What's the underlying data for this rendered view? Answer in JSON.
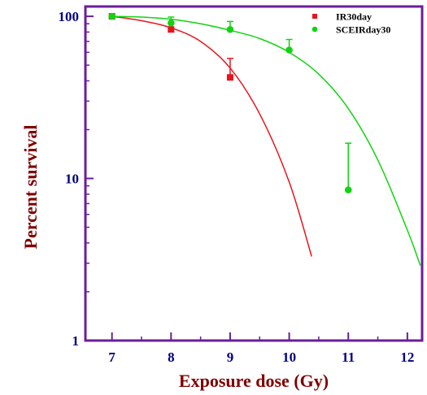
{
  "chart_data": {
    "type": "scatter",
    "xlabel": "Exposure dose (Gy)",
    "ylabel": "Percent survival",
    "y_scale": "log",
    "xlim": [
      6.55,
      12.25
    ],
    "ylim": [
      1,
      115
    ],
    "x_ticks": [
      7,
      8,
      9,
      10,
      11,
      12
    ],
    "x_tick_labels": [
      "7",
      "8",
      "9",
      "10",
      "11",
      "12"
    ],
    "y_ticks": [
      1,
      10,
      100
    ],
    "y_tick_labels": [
      "1",
      "10",
      "100"
    ],
    "legend_position": "top-right",
    "grid": false,
    "series": [
      {
        "name": "IR30day",
        "color": "#e8141d",
        "marker": "square",
        "points": [
          {
            "x": 7,
            "y": 100
          },
          {
            "x": 8,
            "y": 83
          },
          {
            "x": 9,
            "y": 42,
            "err_upper": 55
          }
        ],
        "fit_curve": [
          {
            "x": 7.0,
            "y": 100
          },
          {
            "x": 7.5,
            "y": 94
          },
          {
            "x": 8.0,
            "y": 85
          },
          {
            "x": 8.5,
            "y": 70
          },
          {
            "x": 9.0,
            "y": 48
          },
          {
            "x": 9.5,
            "y": 25
          },
          {
            "x": 10.0,
            "y": 9.5
          },
          {
            "x": 10.38,
            "y": 3.3
          }
        ]
      },
      {
        "name": "SCEIRday30",
        "color": "#11d411",
        "marker": "circle",
        "points": [
          {
            "x": 7,
            "y": 100
          },
          {
            "x": 8,
            "y": 91,
            "err_upper": 99
          },
          {
            "x": 9,
            "y": 83,
            "err_upper": 93
          },
          {
            "x": 10,
            "y": 62,
            "err_upper": 72
          },
          {
            "x": 11,
            "y": 8.5,
            "err_upper": 16.5
          }
        ],
        "fit_curve": [
          {
            "x": 7.0,
            "y": 100
          },
          {
            "x": 7.5,
            "y": 99
          },
          {
            "x": 8.0,
            "y": 96
          },
          {
            "x": 8.5,
            "y": 90
          },
          {
            "x": 9.0,
            "y": 82
          },
          {
            "x": 9.5,
            "y": 73
          },
          {
            "x": 10.0,
            "y": 60
          },
          {
            "x": 10.5,
            "y": 44
          },
          {
            "x": 11.0,
            "y": 27
          },
          {
            "x": 11.5,
            "y": 13
          },
          {
            "x": 12.0,
            "y": 4.8
          },
          {
            "x": 12.22,
            "y": 2.9
          }
        ]
      }
    ]
  },
  "colors": {
    "frame": "#6a1e99",
    "tick_label": "#000080",
    "axis_title": "#800000"
  }
}
